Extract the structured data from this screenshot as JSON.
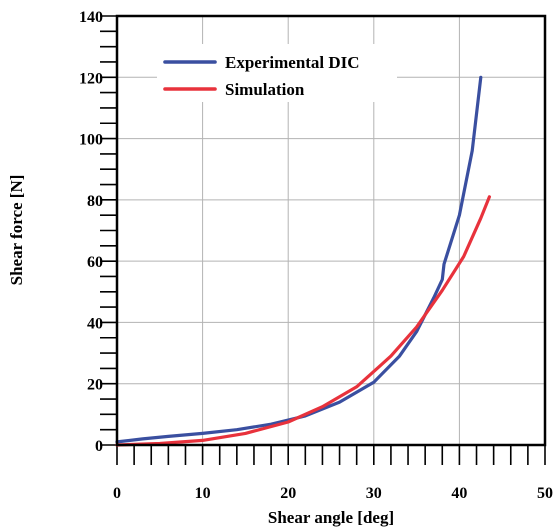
{
  "chart_data": {
    "type": "line",
    "title": "",
    "xlabel": "Shear angle [deg]",
    "ylabel": "Shear force [N]",
    "xlim": [
      0,
      50
    ],
    "ylim": [
      0,
      140
    ],
    "xticks": [
      0,
      10,
      20,
      30,
      40,
      50
    ],
    "yticks": [
      0,
      20,
      40,
      60,
      80,
      100,
      120,
      140
    ],
    "grid": true,
    "legend_position": "top-left",
    "series": [
      {
        "name": "Experimental DIC",
        "color": "#3a4fa0",
        "x": [
          0,
          3,
          6,
          10,
          14,
          18,
          22,
          26,
          30,
          33,
          35,
          37,
          38,
          38.2,
          40,
          41.5,
          42.5
        ],
        "y": [
          1,
          2,
          2.8,
          3.8,
          5,
          6.8,
          9.5,
          14,
          20.5,
          29,
          37,
          48,
          54,
          59,
          75,
          96,
          120
        ]
      },
      {
        "name": "Simulation",
        "color": "#e8323c",
        "x": [
          0,
          5,
          10,
          15,
          20,
          24,
          28,
          32,
          35,
          38,
          40.5,
          42.5,
          43.5
        ],
        "y": [
          0,
          0.5,
          1.5,
          3.8,
          7.5,
          12.5,
          19,
          29,
          38.5,
          50.5,
          61.5,
          74,
          81
        ]
      }
    ]
  }
}
